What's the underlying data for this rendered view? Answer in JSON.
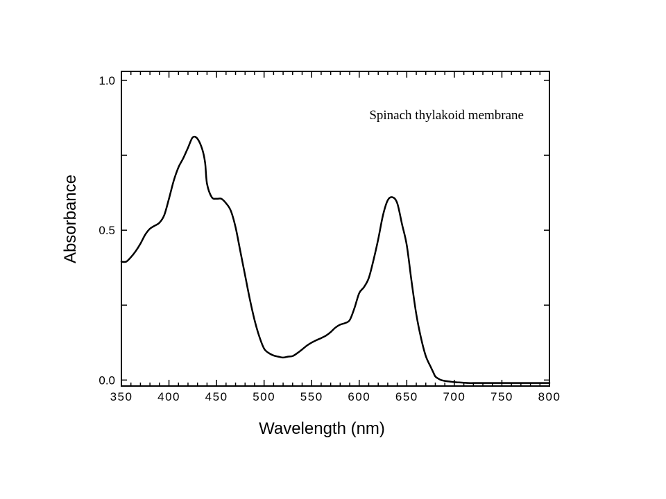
{
  "chart_data": {
    "type": "line",
    "title": "",
    "annotation": "Spinach thylakoid membrane",
    "xlabel": "Wavelength (nm)",
    "ylabel": "Absorbance",
    "xlim": [
      350,
      800
    ],
    "ylim": [
      -0.02,
      1.03
    ],
    "x_ticks": [
      350,
      400,
      450,
      500,
      550,
      600,
      650,
      700,
      750,
      800
    ],
    "x_tick_labels": [
      "350",
      "400",
      "450",
      "500",
      "550",
      "600",
      "650",
      "700",
      "750",
      "800"
    ],
    "y_ticks": [
      0.0,
      0.5,
      1.0
    ],
    "y_tick_labels": [
      "0.0",
      "0.5",
      "1.0"
    ],
    "grid": false,
    "legend": "none",
    "line_color": "#000000",
    "series": [
      {
        "x": [
          350,
          355,
          360,
          365,
          370,
          375,
          380,
          385,
          390,
          395,
          400,
          405,
          410,
          415,
          420,
          425,
          430,
          435,
          438,
          440,
          445,
          450,
          455,
          460,
          465,
          470,
          475,
          480,
          485,
          490,
          495,
          500,
          505,
          510,
          515,
          520,
          525,
          530,
          535,
          540,
          545,
          550,
          555,
          560,
          565,
          570,
          575,
          580,
          585,
          590,
          595,
          600,
          605,
          610,
          615,
          620,
          625,
          630,
          635,
          640,
          645,
          650,
          655,
          660,
          665,
          670,
          675,
          678,
          680,
          683,
          686,
          690,
          695,
          700,
          705,
          710,
          715,
          720,
          725,
          730,
          740,
          750,
          760,
          770,
          780,
          790,
          800
        ],
        "y": [
          0.395,
          0.395,
          0.41,
          0.43,
          0.455,
          0.485,
          0.505,
          0.515,
          0.525,
          0.55,
          0.605,
          0.665,
          0.71,
          0.74,
          0.775,
          0.81,
          0.805,
          0.77,
          0.725,
          0.655,
          0.61,
          0.605,
          0.605,
          0.59,
          0.565,
          0.51,
          0.43,
          0.35,
          0.27,
          0.2,
          0.145,
          0.105,
          0.09,
          0.082,
          0.078,
          0.075,
          0.078,
          0.08,
          0.09,
          0.102,
          0.115,
          0.125,
          0.133,
          0.14,
          0.148,
          0.16,
          0.175,
          0.185,
          0.19,
          0.2,
          0.24,
          0.29,
          0.31,
          0.34,
          0.4,
          0.47,
          0.55,
          0.6,
          0.61,
          0.59,
          0.52,
          0.45,
          0.33,
          0.22,
          0.14,
          0.08,
          0.045,
          0.025,
          0.012,
          0.005,
          0.0,
          -0.003,
          -0.005,
          -0.007,
          -0.008,
          -0.009,
          -0.01,
          -0.01,
          -0.01,
          -0.01,
          -0.01,
          -0.01,
          -0.01,
          -0.01,
          -0.01,
          -0.01,
          -0.01
        ]
      }
    ]
  }
}
